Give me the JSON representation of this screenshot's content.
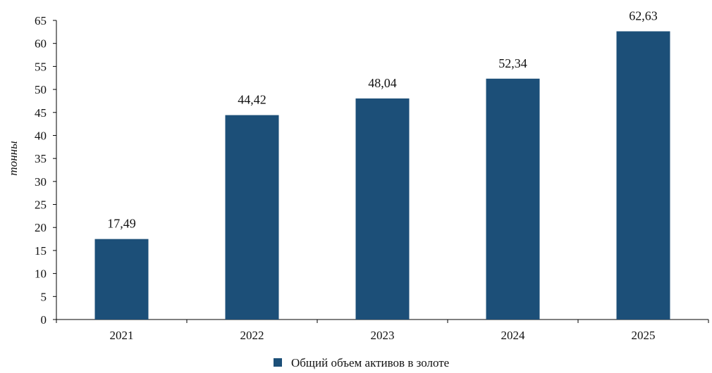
{
  "chart_data": {
    "type": "bar",
    "categories": [
      "2021",
      "2022",
      "2023",
      "2024",
      "2025"
    ],
    "series": [
      {
        "name": "Общий объем активов в золоте",
        "values": [
          17.49,
          44.42,
          48.04,
          52.34,
          62.63
        ],
        "value_labels": [
          "17,49",
          "44,42",
          "48,04",
          "52,34",
          "62,63"
        ],
        "color": "#1c4f78"
      }
    ],
    "ylabel": "тонны",
    "xlabel": "",
    "ylim": [
      0,
      65
    ],
    "yticks": [
      0,
      5,
      10,
      15,
      20,
      25,
      30,
      35,
      40,
      45,
      50,
      55,
      60,
      65
    ],
    "grid": false,
    "legend": "bottom-center"
  }
}
